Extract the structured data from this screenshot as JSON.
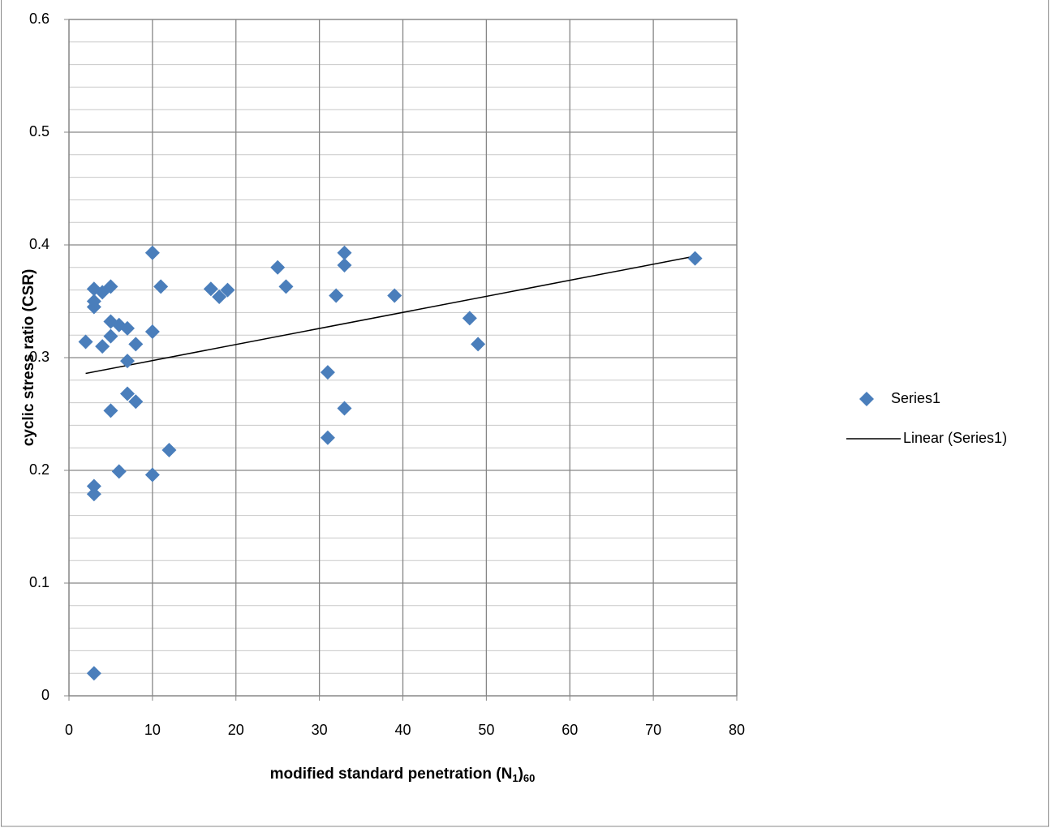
{
  "chart_data": {
    "type": "scatter",
    "y_label": "cyclic stress ratio (CSR)",
    "x_label": [
      "modified standard penetration (N",
      "1",
      ")",
      "60"
    ],
    "series": [
      {
        "name": "Series1",
        "color": "#4a7ebb",
        "x": [
          2,
          3,
          3,
          3,
          4,
          4,
          5,
          5,
          5,
          5,
          6,
          6,
          7,
          7,
          7,
          8,
          8,
          10,
          10,
          10,
          11,
          12,
          3,
          3,
          3,
          17,
          18,
          19,
          25,
          26,
          31,
          31,
          32,
          33,
          33,
          33,
          39,
          48,
          49,
          75
        ],
        "values": [
          0.314,
          0.361,
          0.35,
          0.345,
          0.358,
          0.31,
          0.363,
          0.332,
          0.319,
          0.253,
          0.329,
          0.199,
          0.326,
          0.297,
          0.268,
          0.261,
          0.312,
          0.393,
          0.323,
          0.196,
          0.363,
          0.218,
          0.186,
          0.179,
          0.02,
          0.361,
          0.354,
          0.36,
          0.38,
          0.363,
          0.287,
          0.229,
          0.355,
          0.393,
          0.382,
          0.255,
          0.355,
          0.335,
          0.312,
          0.388
        ]
      }
    ],
    "trendline": {
      "name": "Linear (Series1)",
      "color": "#000000",
      "x": [
        2,
        75
      ],
      "values": [
        0.286,
        0.39
      ]
    },
    "xlim": [
      0,
      80
    ],
    "xticks": [
      0,
      10,
      20,
      30,
      40,
      50,
      60,
      70,
      80
    ],
    "ylim": [
      0,
      0.6
    ],
    "yticks": [
      0,
      0.1,
      0.2,
      0.3,
      0.4,
      0.5,
      0.6
    ],
    "y_minor_step": 0.02,
    "grid": true,
    "legend": "right"
  }
}
